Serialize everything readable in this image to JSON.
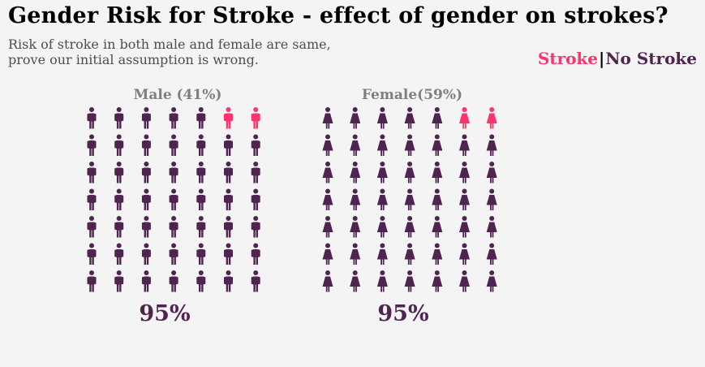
{
  "header": {
    "title": "Gender Risk for Stroke - effect of gender on strokes?",
    "subtitle_line1": "Risk of stroke in both male and female are same,",
    "subtitle_line2": "prove our initial assumption is wrong."
  },
  "legend": {
    "stroke_label": "Stroke",
    "separator": "|",
    "no_stroke_label": "No Stroke"
  },
  "colors": {
    "stroke": "#fe346e",
    "no_stroke": "#4f2450",
    "background": "#f4f4f4"
  },
  "chart_data": {
    "type": "pictograph",
    "panels": [
      {
        "title": "Male (41%)",
        "icon": "male-person-icon",
        "percent_label": "95%",
        "grid": {
          "rows": 7,
          "cols": 7
        },
        "stroke_icons": 2,
        "no_stroke_icons": 47
      },
      {
        "title": "Female(59%)",
        "icon": "female-person-icon",
        "percent_label": "95%",
        "grid": {
          "rows": 7,
          "cols": 7
        },
        "stroke_icons": 2,
        "no_stroke_icons": 47
      }
    ]
  }
}
